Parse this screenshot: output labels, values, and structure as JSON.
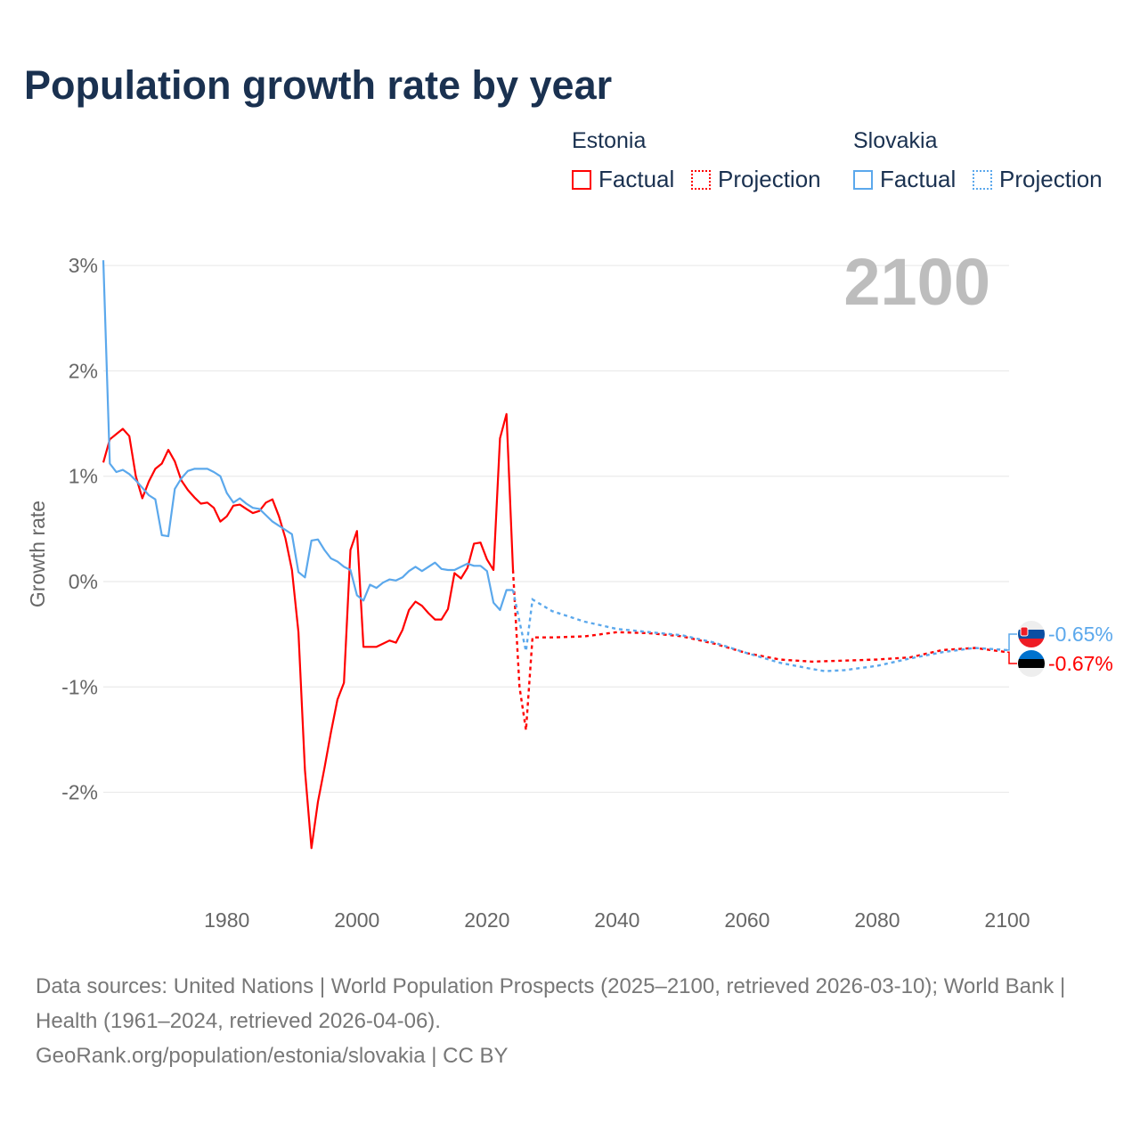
{
  "title": "Population growth rate by year",
  "legend": {
    "groups": [
      {
        "name": "Estonia",
        "color": "#ff0000",
        "items": [
          "Factual",
          "Projection"
        ]
      },
      {
        "name": "Slovakia",
        "color": "#5ba8ec",
        "items": [
          "Factual",
          "Projection"
        ]
      }
    ]
  },
  "year_label": "2100",
  "footer": {
    "sources": "Data sources: United Nations | World Population Prospects (2025–2100, retrieved 2026-03-10); World Bank | Health (1961–2024, retrieved 2026-04-06).",
    "credit": "GeoRank.org/population/estonia/slovakia | CC BY"
  },
  "chart_data": {
    "type": "line",
    "title": "Population growth rate by year",
    "xlabel": "",
    "ylabel": "Growth rate",
    "xlim": [
      1961,
      2100
    ],
    "ylim": [
      -2.9,
      3.1
    ],
    "grid": true,
    "legend_position": "top-right",
    "x_ticks": [
      1980,
      2000,
      2020,
      2040,
      2060,
      2080,
      2100
    ],
    "x_tick_labels": [
      "1980",
      "2000",
      "2020",
      "2040",
      "2060",
      "2080",
      "2100"
    ],
    "y_ticks": [
      3,
      2,
      1,
      0,
      -1,
      -2
    ],
    "y_tick_labels": [
      "3%",
      "2%",
      "1%",
      "0%",
      "-1%",
      "-2%"
    ],
    "series": [
      {
        "name": "Estonia",
        "color": "#ff0000",
        "end_label": "-0.67%",
        "factual": {
          "start_year": 1961,
          "values": [
            1.13,
            1.35,
            1.4,
            1.45,
            1.38,
            1.0,
            0.79,
            0.95,
            1.07,
            1.12,
            1.25,
            1.14,
            0.96,
            0.87,
            0.8,
            0.74,
            0.75,
            0.7,
            0.57,
            0.62,
            0.72,
            0.73,
            0.69,
            0.65,
            0.67,
            0.75,
            0.78,
            0.62,
            0.41,
            0.11,
            -0.48,
            -1.79,
            -2.53,
            -2.09,
            -1.77,
            -1.43,
            -1.12,
            -0.96,
            0.3,
            0.48,
            -0.62,
            -0.62,
            -0.62,
            -0.59,
            -0.56,
            -0.58,
            -0.46,
            -0.27,
            -0.19,
            -0.23,
            -0.3,
            -0.36,
            -0.36,
            -0.26,
            0.08,
            0.03,
            0.13,
            0.36,
            0.37,
            0.21,
            0.11,
            1.36,
            1.59,
            0.11
          ]
        },
        "projection": {
          "years": [
            2024,
            2025,
            2026,
            2027,
            2030,
            2035,
            2040,
            2045,
            2050,
            2055,
            2060,
            2065,
            2070,
            2075,
            2080,
            2085,
            2090,
            2095,
            2100
          ],
          "values": [
            0.11,
            -1.0,
            -1.41,
            -0.53,
            -0.53,
            -0.52,
            -0.48,
            -0.49,
            -0.52,
            -0.59,
            -0.68,
            -0.74,
            -0.76,
            -0.75,
            -0.74,
            -0.72,
            -0.65,
            -0.63,
            -0.67
          ]
        }
      },
      {
        "name": "Slovakia",
        "color": "#5ba8ec",
        "end_label": "-0.65%",
        "factual": {
          "start_year": 1961,
          "values": [
            3.05,
            1.12,
            1.04,
            1.06,
            1.02,
            0.96,
            0.89,
            0.82,
            0.78,
            0.44,
            0.43,
            0.88,
            0.98,
            1.05,
            1.07,
            1.07,
            1.07,
            1.04,
            1.0,
            0.84,
            0.75,
            0.79,
            0.74,
            0.7,
            0.69,
            0.63,
            0.57,
            0.53,
            0.49,
            0.45,
            0.09,
            0.04,
            0.39,
            0.4,
            0.3,
            0.22,
            0.19,
            0.14,
            0.11,
            -0.13,
            -0.18,
            -0.03,
            -0.06,
            -0.01,
            0.02,
            0.01,
            0.04,
            0.1,
            0.14,
            0.1,
            0.14,
            0.18,
            0.12,
            0.11,
            0.11,
            0.14,
            0.17,
            0.15,
            0.15,
            0.1,
            -0.2,
            -0.27,
            -0.08,
            -0.08
          ]
        },
        "projection": {
          "years": [
            2024,
            2025,
            2026,
            2027,
            2030,
            2035,
            2040,
            2045,
            2050,
            2055,
            2060,
            2065,
            2070,
            2072,
            2075,
            2080,
            2085,
            2090,
            2095,
            2100
          ],
          "values": [
            -0.08,
            -0.38,
            -0.66,
            -0.17,
            -0.28,
            -0.38,
            -0.45,
            -0.48,
            -0.51,
            -0.58,
            -0.68,
            -0.77,
            -0.83,
            -0.85,
            -0.84,
            -0.8,
            -0.73,
            -0.67,
            -0.63,
            -0.65
          ]
        }
      }
    ]
  }
}
